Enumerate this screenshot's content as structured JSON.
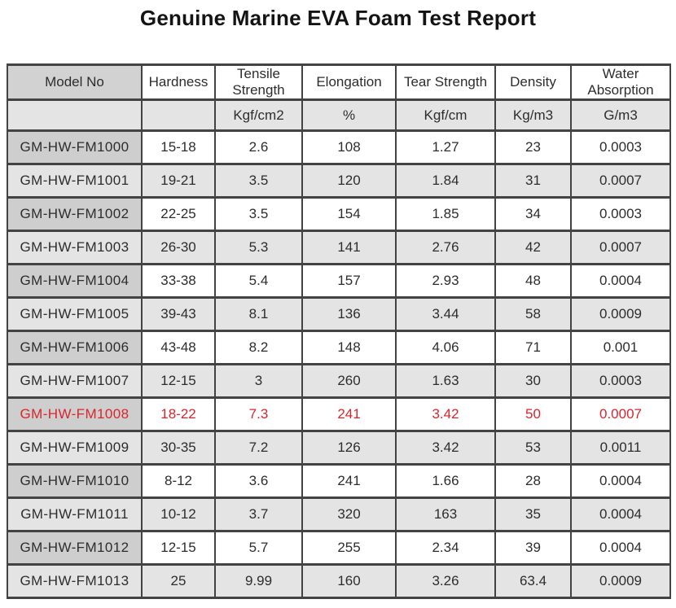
{
  "title": "Genuine Marine EVA Foam Test Report",
  "colors": {
    "highlight_text": "#d8262c",
    "border": "#434343",
    "header_model_bg": "#d2d2d2",
    "model_cell_bg": "#cecece",
    "stripe_bg": "#e4e4e4",
    "text": "#2d2d2d"
  },
  "table": {
    "columns": [
      {
        "label": "Model No",
        "unit": ""
      },
      {
        "label": "Hardness",
        "unit": ""
      },
      {
        "label": "Tensile Strength",
        "unit": "Kgf/cm2"
      },
      {
        "label": "Elongation",
        "unit": "%"
      },
      {
        "label": "Tear Strength",
        "unit": "Kgf/cm"
      },
      {
        "label": "Density",
        "unit": "Kg/m3"
      },
      {
        "label": "Water Absorption",
        "unit": "G/m3"
      }
    ],
    "rows": [
      {
        "model": "GM-HW-FM1000",
        "hardness": "15-18",
        "tensile": "2.6",
        "elongation": "108",
        "tear": "1.27",
        "density": "23",
        "water": "0.0003",
        "highlight": false
      },
      {
        "model": "GM-HW-FM1001",
        "hardness": "19-21",
        "tensile": "3.5",
        "elongation": "120",
        "tear": "1.84",
        "density": "31",
        "water": "0.0007",
        "highlight": false
      },
      {
        "model": "GM-HW-FM1002",
        "hardness": "22-25",
        "tensile": "3.5",
        "elongation": "154",
        "tear": "1.85",
        "density": "34",
        "water": "0.0003",
        "highlight": false
      },
      {
        "model": "GM-HW-FM1003",
        "hardness": "26-30",
        "tensile": "5.3",
        "elongation": "141",
        "tear": "2.76",
        "density": "42",
        "water": "0.0007",
        "highlight": false
      },
      {
        "model": "GM-HW-FM1004",
        "hardness": "33-38",
        "tensile": "5.4",
        "elongation": "157",
        "tear": "2.93",
        "density": "48",
        "water": "0.0004",
        "highlight": false
      },
      {
        "model": "GM-HW-FM1005",
        "hardness": "39-43",
        "tensile": "8.1",
        "elongation": "136",
        "tear": "3.44",
        "density": "58",
        "water": "0.0009",
        "highlight": false
      },
      {
        "model": "GM-HW-FM1006",
        "hardness": "43-48",
        "tensile": "8.2",
        "elongation": "148",
        "tear": "4.06",
        "density": "71",
        "water": "0.001",
        "highlight": false
      },
      {
        "model": "GM-HW-FM1007",
        "hardness": "12-15",
        "tensile": "3",
        "elongation": "260",
        "tear": "1.63",
        "density": "30",
        "water": "0.0003",
        "highlight": false
      },
      {
        "model": "GM-HW-FM1008",
        "hardness": "18-22",
        "tensile": "7.3",
        "elongation": "241",
        "tear": "3.42",
        "density": "50",
        "water": "0.0007",
        "highlight": true
      },
      {
        "model": "GM-HW-FM1009",
        "hardness": "30-35",
        "tensile": "7.2",
        "elongation": "126",
        "tear": "3.42",
        "density": "53",
        "water": "0.0011",
        "highlight": false
      },
      {
        "model": "GM-HW-FM1010",
        "hardness": "8-12",
        "tensile": "3.6",
        "elongation": "241",
        "tear": "1.66",
        "density": "28",
        "water": "0.0004",
        "highlight": false
      },
      {
        "model": "GM-HW-FM1011",
        "hardness": "10-12",
        "tensile": "3.7",
        "elongation": "320",
        "tear": "163",
        "density": "35",
        "water": "0.0004",
        "highlight": false
      },
      {
        "model": "GM-HW-FM1012",
        "hardness": "12-15",
        "tensile": "5.7",
        "elongation": "255",
        "tear": "2.34",
        "density": "39",
        "water": "0.0004",
        "highlight": false
      },
      {
        "model": "GM-HW-FM1013",
        "hardness": "25",
        "tensile": "9.99",
        "elongation": "160",
        "tear": "3.26",
        "density": "63.4",
        "water": "0.0009",
        "highlight": false
      }
    ]
  }
}
